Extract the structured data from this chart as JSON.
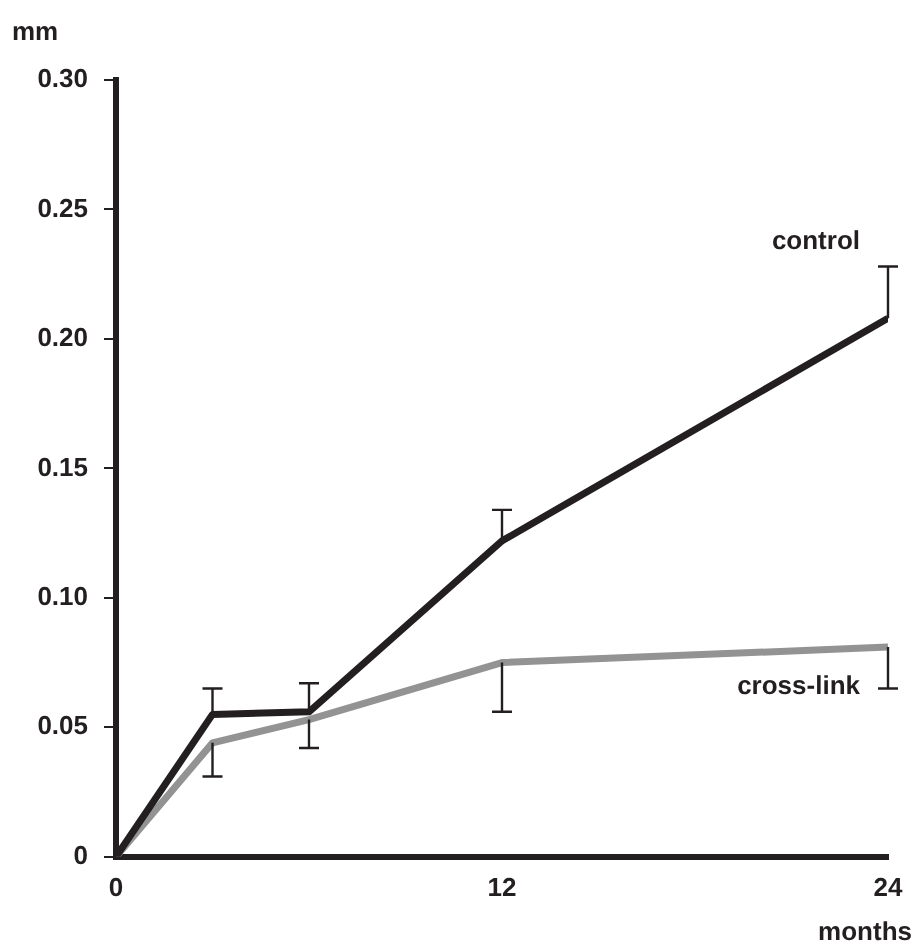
{
  "chart_data": {
    "type": "line",
    "xlabel": "months",
    "ylabel": "mm",
    "x": [
      0,
      3,
      6,
      12,
      24
    ],
    "xlim": [
      0,
      24
    ],
    "xticks": [
      0,
      12,
      24
    ],
    "ylim": [
      0,
      0.3
    ],
    "yticks": [
      0,
      {
        "value": 0.05,
        "label": "0.05"
      },
      {
        "value": 0.1,
        "label": "0.10"
      },
      {
        "value": 0.15,
        "label": "0.15"
      },
      {
        "value": 0.2,
        "label": "0.20"
      },
      {
        "value": 0.25,
        "label": "0.25"
      },
      {
        "value": 0.3,
        "label": "0.30"
      }
    ],
    "series": [
      {
        "name": "control",
        "color": "#231f20",
        "values": [
          0,
          0.055,
          0.056,
          0.122,
          0.208
        ],
        "errors": [
          null,
          [
            0.055,
            0.065
          ],
          [
            0.056,
            0.067
          ],
          [
            0.122,
            0.134
          ],
          [
            0.208,
            0.228
          ]
        ]
      },
      {
        "name": "cross-link",
        "color": "#939393",
        "values": [
          0,
          0.044,
          0.053,
          0.075,
          0.081
        ],
        "errors": [
          null,
          [
            0.031,
            0.044
          ],
          [
            0.042,
            0.053
          ],
          [
            0.056,
            0.075
          ],
          [
            0.065,
            0.081
          ]
        ]
      }
    ],
    "grid": false,
    "legend": false,
    "marker": "none",
    "line_style": "solid"
  }
}
